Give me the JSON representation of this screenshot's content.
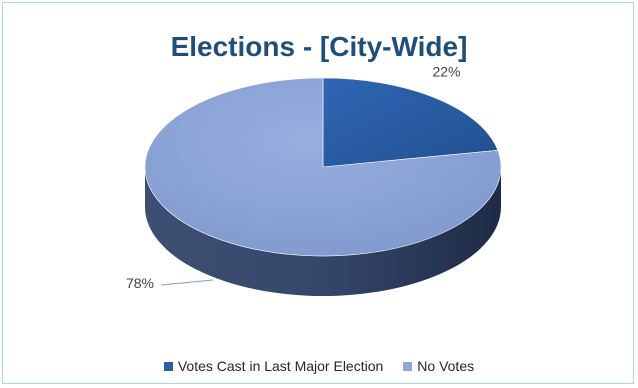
{
  "chart_data": {
    "type": "pie",
    "title": "Elections - [City-Wide]",
    "style": "3d",
    "categories": [
      "Votes Cast in Last Major Election",
      "No Votes"
    ],
    "values": [
      22,
      78
    ],
    "data_labels": [
      "22%",
      "78%"
    ],
    "colors": [
      "#2a5da6",
      "#8ea6d8"
    ],
    "legend_position": "bottom"
  }
}
